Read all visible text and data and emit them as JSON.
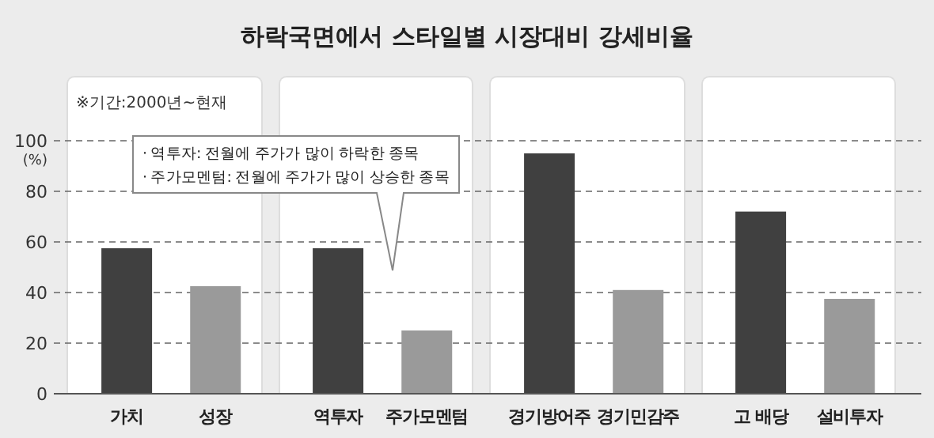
{
  "chart_data": {
    "type": "bar",
    "title": "하락국면에서 스타일별 시장대비 강세비율",
    "categories": [
      "가치",
      "성장",
      "역투자",
      "주가모멘텀",
      "경기방어주",
      "경기민감주",
      "고 배당",
      "설비투자"
    ],
    "values": [
      57.5,
      42.5,
      57.5,
      25,
      95,
      41,
      72,
      37.5
    ],
    "colors": [
      "#404040",
      "#9a9a9a",
      "#404040",
      "#9a9a9a",
      "#404040",
      "#9a9a9a",
      "#404040",
      "#9a9a9a"
    ],
    "ylim": [
      0,
      100
    ],
    "yticks": [
      0,
      20,
      40,
      60,
      80,
      100
    ],
    "ylabel": "(%)",
    "grid": "y",
    "annotations": [
      "※기간:2000년~현재",
      "· 역투자: 전월에 주가가 많이 하락한 종목\n· 주가모멘텀: 전월에 주가가 많이 상승한 종목"
    ]
  }
}
